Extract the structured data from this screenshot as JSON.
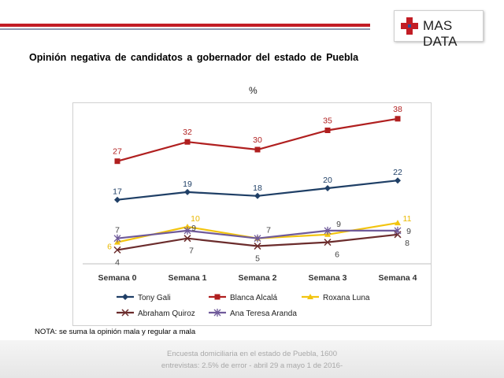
{
  "header": {
    "logo_text": "MAS DATA",
    "accent_color": "#c21d25",
    "logo_icon": "red-cross-icon"
  },
  "title": "Opinión  negativa de candidatos  a gobernador  del estado de Puebla",
  "unit_label": "%",
  "chart_data": {
    "type": "line",
    "categories": [
      "Semana 0",
      "Semana 1",
      "Semana 2",
      "Semana 3",
      "Semana 4"
    ],
    "series": [
      {
        "name": "Tony Gali",
        "values": [
          17,
          19,
          18,
          20,
          22
        ],
        "color": "#1f3f66",
        "marker": "diamond"
      },
      {
        "name": "Blanca Alcalá",
        "values": [
          27,
          32,
          30,
          35,
          38
        ],
        "color": "#b01f1f",
        "marker": "square"
      },
      {
        "name": "Roxana Luna",
        "values": [
          6,
          10,
          7,
          8,
          11
        ],
        "color": "#f2c40f",
        "marker": "triangle",
        "value_labels": [
          "6",
          "10",
          null,
          null,
          "11"
        ]
      },
      {
        "name": "Abraham Quiroz",
        "values": [
          4,
          7,
          5,
          6,
          8
        ],
        "color": "#6b2c2c",
        "marker": "x"
      },
      {
        "name": "Ana Teresa Aranda",
        "values": [
          7,
          9,
          7,
          9,
          9
        ],
        "color": "#6f5a9a",
        "marker": "star"
      }
    ],
    "ylim": [
      0,
      40
    ],
    "y_axis_visible": false,
    "grid": false,
    "legend_position": "bottom"
  },
  "note": "NOTA: se suma la opinión mala y regular a mala",
  "footer": {
    "line1": "Encuesta domiciliaria en el estado de Puebla, 1600",
    "line2": "entrevistas: 2.5% de error  - abril 29 a mayo 1 de 2016-"
  }
}
